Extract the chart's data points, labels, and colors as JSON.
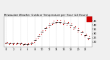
{
  "title": "Milwaukee Weather Outdoor Temperature per Hour (24 Hours)",
  "title_fontsize": 2.8,
  "background_color": "#f0f0f0",
  "plot_bg_color": "#ffffff",
  "grid_color": "#aaaaaa",
  "hours": [
    0,
    1,
    2,
    3,
    4,
    5,
    6,
    7,
    8,
    9,
    10,
    11,
    12,
    13,
    14,
    15,
    16,
    17,
    18,
    19,
    20,
    21,
    22,
    23
  ],
  "temps": [
    19,
    18,
    18,
    18,
    18,
    17,
    17,
    18,
    22,
    27,
    32,
    36,
    40,
    43,
    44,
    44,
    43,
    42,
    40,
    37,
    34,
    31,
    28,
    25
  ],
  "temp_hi": [
    20,
    19,
    19,
    19,
    19,
    18,
    18,
    20,
    24,
    29,
    34,
    38,
    42,
    45,
    46,
    46,
    45,
    44,
    42,
    39,
    36,
    33,
    30,
    27
  ],
  "temp_lo": [
    18,
    17,
    17,
    17,
    17,
    16,
    16,
    17,
    20,
    25,
    30,
    34,
    38,
    41,
    42,
    42,
    41,
    40,
    38,
    35,
    32,
    29,
    26,
    23
  ],
  "dot_color": "#cc0000",
  "dot_size": 0.8,
  "hbar_color": "#000000",
  "highlight_color": "#cc0000",
  "highlight_x1": 22.3,
  "highlight_x2": 24.0,
  "highlight_y1": 44,
  "highlight_y2": 50,
  "ylim": [
    14,
    50
  ],
  "yticks": [
    20,
    25,
    30,
    35,
    40,
    45
  ],
  "ytick_labels": [
    "20",
    "25",
    "30",
    "35",
    "40",
    "45"
  ],
  "xlim": [
    -0.5,
    24
  ],
  "ylabel_fontsize": 2.8,
  "xlabel_fontsize": 2.5,
  "dashed_gridlines_x": [
    0,
    2,
    4,
    6,
    8,
    10,
    12,
    14,
    16,
    18,
    20,
    22
  ]
}
